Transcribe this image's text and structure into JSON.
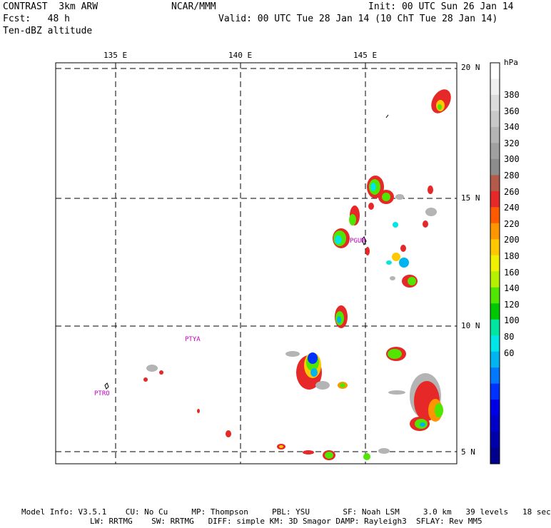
{
  "header": {
    "line1_left": "CONTRAST  3km ARW",
    "line1_mid": "NCAR/MMM",
    "line1_right": "Init: 00 UTC Sun 26 Jan 14",
    "line2_left": "Fcst:   48 h",
    "line2_right": "Valid: 00 UTC Tue 28 Jan 14 (10 ChT Tue 28 Jan 14)",
    "line3_left": "Ten-dBZ altitude"
  },
  "map": {
    "lon_labels": [
      "135 E",
      "140 E",
      "145 E"
    ],
    "lat_labels": [
      "20 N",
      "15 N",
      "10 N",
      "5 N"
    ],
    "stations": [
      "PGUM",
      "PTYA",
      "PTRO"
    ]
  },
  "colorbar": {
    "unit": "hPa",
    "labels": [
      "380",
      "360",
      "340",
      "320",
      "300",
      "280",
      "260",
      "240",
      "220",
      "200",
      "180",
      "160",
      "140",
      "120",
      "100",
      "80",
      "60"
    ],
    "colors": [
      "#ffffff",
      "#f0f0f0",
      "#dcdcdc",
      "#c8c8c8",
      "#b4b4b4",
      "#a0a0a0",
      "#8c8c8c",
      "#b45a4a",
      "#e62828",
      "#ff5a00",
      "#ff9600",
      "#ffc800",
      "#f0f000",
      "#b4f000",
      "#50e600",
      "#00c800",
      "#00e6a0",
      "#00e6e6",
      "#00b4f0",
      "#0078ff",
      "#0032ff",
      "#0000e6",
      "#0000c8",
      "#0000aa",
      "#00008c"
    ]
  },
  "footer": {
    "line1": "Model Info: V3.5.1    CU: No Cu     MP: Thompson     PBL: YSU       SF: Noah LSM     3.0 km   39 levels   18 sec",
    "line2": "LW: RRTMG    SW: RRTMG   DIFF: simple KM: 3D Smagor DAMP: Rayleigh3  SFLAY: Rev MM5"
  }
}
